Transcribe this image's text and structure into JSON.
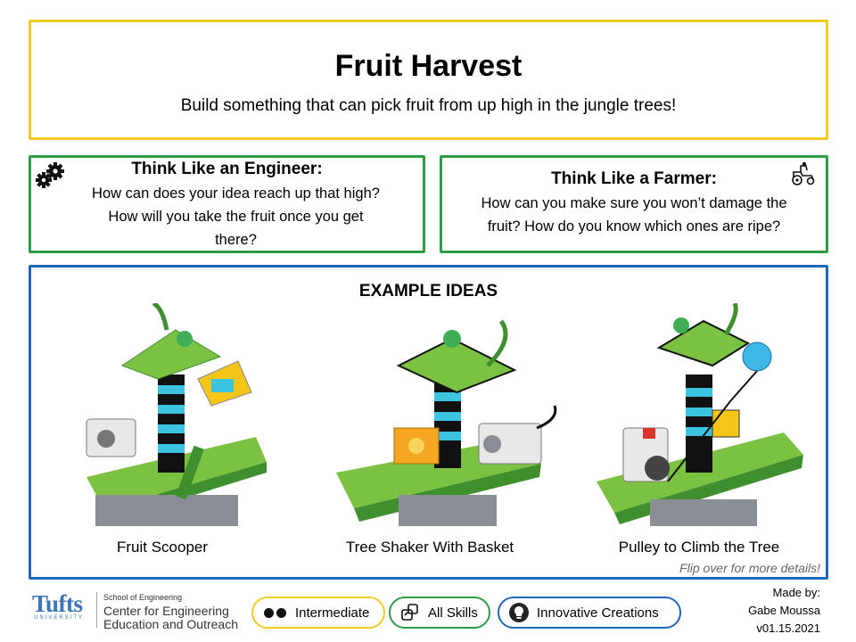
{
  "header": {
    "title": "Fruit Harvest",
    "subtitle": "Build something that can pick fruit from up high in the jungle trees!"
  },
  "engineer": {
    "heading": "Think Like an Engineer:",
    "line1": "How can does your idea reach up that high?",
    "line2": "How will you take the fruit once you get",
    "line3": "there?",
    "icon": "gears-icon"
  },
  "farmer": {
    "heading": "Think Like a Farmer:",
    "line1": "How can you make sure you won’t damage the",
    "line2": "fruit? How do you know which ones are ripe?",
    "icon": "tractor-icon"
  },
  "examples": {
    "heading": "EXAMPLE IDEAS",
    "items": [
      {
        "label": "Fruit Scooper"
      },
      {
        "label": "Tree Shaker With Basket"
      },
      {
        "label": "Pulley to Climb the Tree"
      }
    ],
    "flip_note": "Flip over for more details!"
  },
  "footer": {
    "logo_word": "Tufts",
    "logo_university": "UNIVERSITY",
    "school": "School of Engineering",
    "center_line1": "Center for Engineering",
    "center_line2": "Education and Outreach",
    "level": "Intermediate",
    "skills": "All Skills",
    "type": "Innovative Creations",
    "made_by_label": "Made by:",
    "author": "Gabe Moussa",
    "version": "v01.15.2021"
  },
  "colors": {
    "yellow": "#f2cc24",
    "green": "#2e9b47",
    "blue": "#1f68b8",
    "lego_green": "#7cc242",
    "lego_dark_green": "#3f8f2f"
  }
}
